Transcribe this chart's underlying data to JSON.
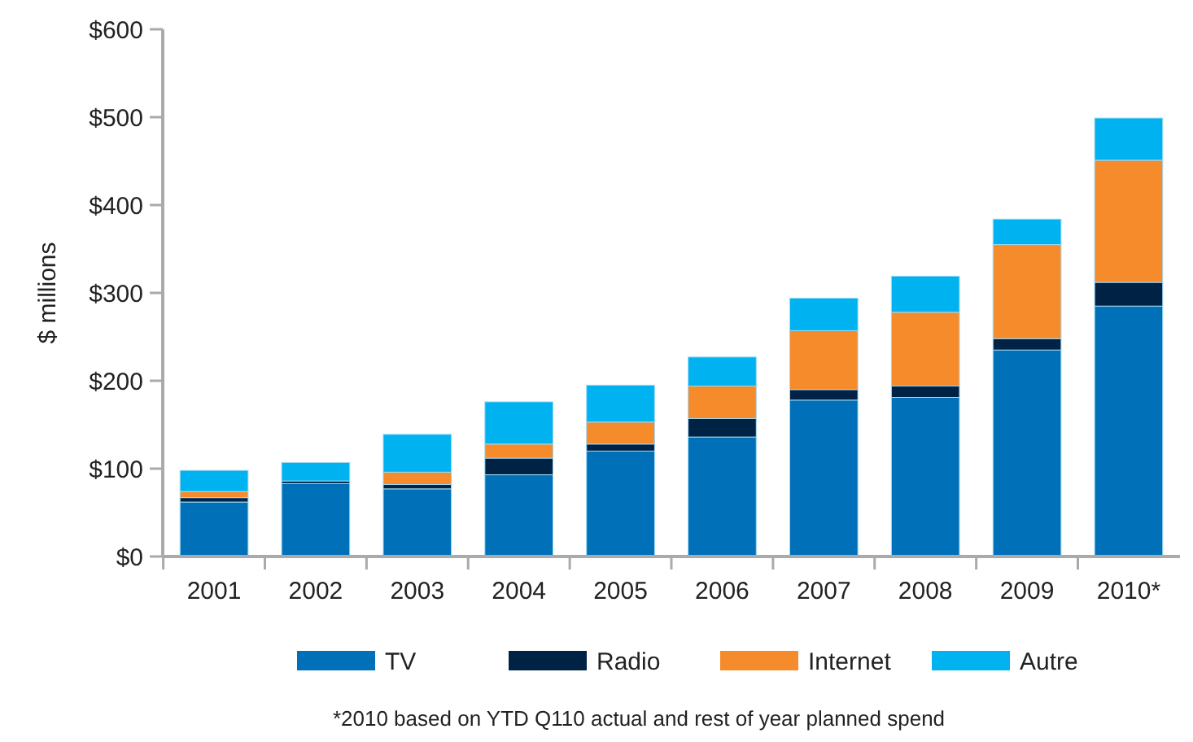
{
  "chart_data": {
    "type": "bar",
    "stacked": true,
    "ylabel": "$ millions",
    "categories": [
      "2001",
      "2002",
      "2003",
      "2004",
      "2005",
      "2006",
      "2007",
      "2008",
      "2009",
      "2010*"
    ],
    "series": [
      {
        "name": "TV",
        "color": "#0070b8",
        "values": [
          62,
          83,
          77,
          93,
          120,
          136,
          178,
          181,
          235,
          285
        ]
      },
      {
        "name": "Radio",
        "color": "#002244",
        "values": [
          5,
          3,
          5,
          19,
          8,
          21,
          12,
          13,
          13,
          27
        ]
      },
      {
        "name": "Internet",
        "color": "#f58b2a",
        "values": [
          7,
          0,
          14,
          16,
          25,
          37,
          67,
          84,
          107,
          139
        ]
      },
      {
        "name": "Autre",
        "color": "#00b2ef",
        "values": [
          24,
          21,
          43,
          48,
          42,
          33,
          37,
          41,
          29,
          48
        ]
      }
    ],
    "ylim": [
      0,
      600
    ],
    "yticks": [
      {
        "value": 0,
        "label": "$0"
      },
      {
        "value": 100,
        "label": "$100"
      },
      {
        "value": 200,
        "label": "$200"
      },
      {
        "value": 300,
        "label": "$300"
      },
      {
        "value": 400,
        "label": "$400"
      },
      {
        "value": 500,
        "label": "$500"
      },
      {
        "value": 600,
        "label": "$600"
      }
    ],
    "legend": "bottom",
    "grid": false,
    "annotations": [
      "*2010 based on YTD Q110 actual and rest of year planned spend"
    ]
  }
}
